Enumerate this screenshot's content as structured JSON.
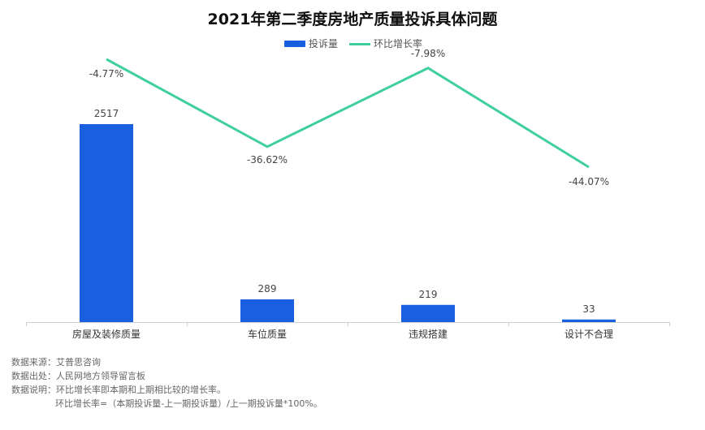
{
  "chart_data": {
    "type": "bar",
    "title": "2021年第二季度房地产质量投诉具体问题",
    "categories": [
      "房屋及装修质量",
      "车位质量",
      "违规搭建",
      "设计不合理"
    ],
    "series": [
      {
        "name": "投诉量",
        "kind": "bar",
        "color": "#1a5fe0",
        "values": [
          2517,
          289,
          219,
          33
        ],
        "labels": [
          "2517",
          "289",
          "219",
          "33"
        ]
      },
      {
        "name": "环比增长率",
        "kind": "line",
        "color": "#3fcf9e",
        "values": [
          -4.77,
          -36.62,
          -7.98,
          -44.07
        ],
        "labels": [
          "-4.77%",
          "-36.62%",
          "-7.98%",
          "-44.07%"
        ]
      }
    ],
    "ylim_bar": [
      0,
      2517
    ],
    "ylim_line": [
      -44.07,
      -4.77
    ],
    "legend_position": "top-center",
    "grid": false
  },
  "notes": [
    "数据来源：艾普思咨询",
    "数据出处：人民网地方领导留言板",
    "数据说明：环比增长率即本期和上期相比较的增长率。",
    "环比增长率=（本期投诉量-上一期投诉量）/上一期投诉量*100%。"
  ]
}
